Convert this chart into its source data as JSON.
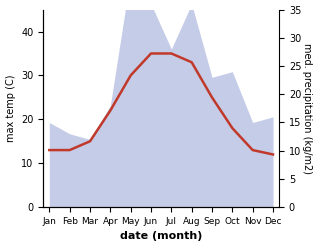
{
  "months": [
    "Jan",
    "Feb",
    "Mar",
    "Apr",
    "May",
    "Jun",
    "Jul",
    "Aug",
    "Sep",
    "Oct",
    "Nov",
    "Dec"
  ],
  "temperature": [
    13,
    13,
    15,
    22,
    30,
    35,
    35,
    33,
    25,
    18,
    13,
    12
  ],
  "precipitation": [
    15,
    13,
    12,
    18,
    41,
    36,
    28,
    36,
    23,
    24,
    15,
    16
  ],
  "temp_color": "#c0392b",
  "precip_fill_color": "#c5cce8",
  "xlabel": "date (month)",
  "ylabel_left": "max temp (C)",
  "ylabel_right": "med. precipitation (kg/m2)",
  "ylim_left": [
    0,
    45
  ],
  "ylim_right": [
    0,
    35
  ],
  "yticks_left": [
    0,
    10,
    20,
    30,
    40
  ],
  "yticks_right": [
    0,
    5,
    10,
    15,
    20,
    25,
    30,
    35
  ],
  "background_color": "#ffffff"
}
